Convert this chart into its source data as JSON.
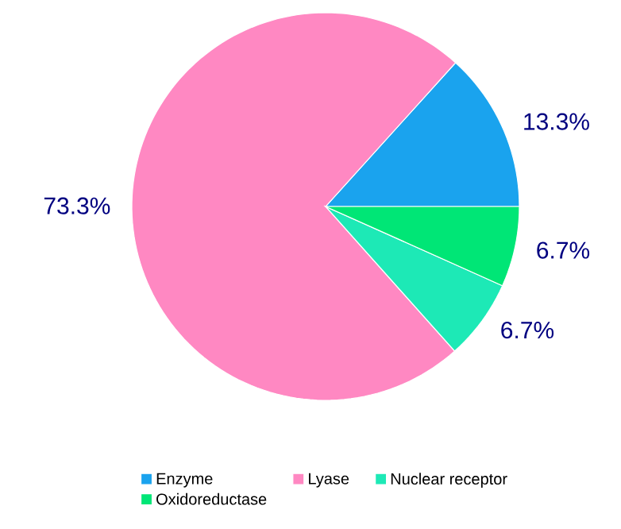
{
  "chart_data": {
    "type": "pie",
    "categories": [
      "Enzyme",
      "Lyase",
      "Nuclear receptor",
      "Oxidoreductase"
    ],
    "values": [
      13.3,
      73.3,
      6.7,
      6.7
    ],
    "colors": [
      "#1aa3ee",
      "#ff88c2",
      "#1de9b6",
      "#00e676"
    ],
    "value_labels": [
      "13.3%",
      "73.3%",
      "6.7%",
      "6.7%"
    ],
    "legend": "bottom"
  }
}
